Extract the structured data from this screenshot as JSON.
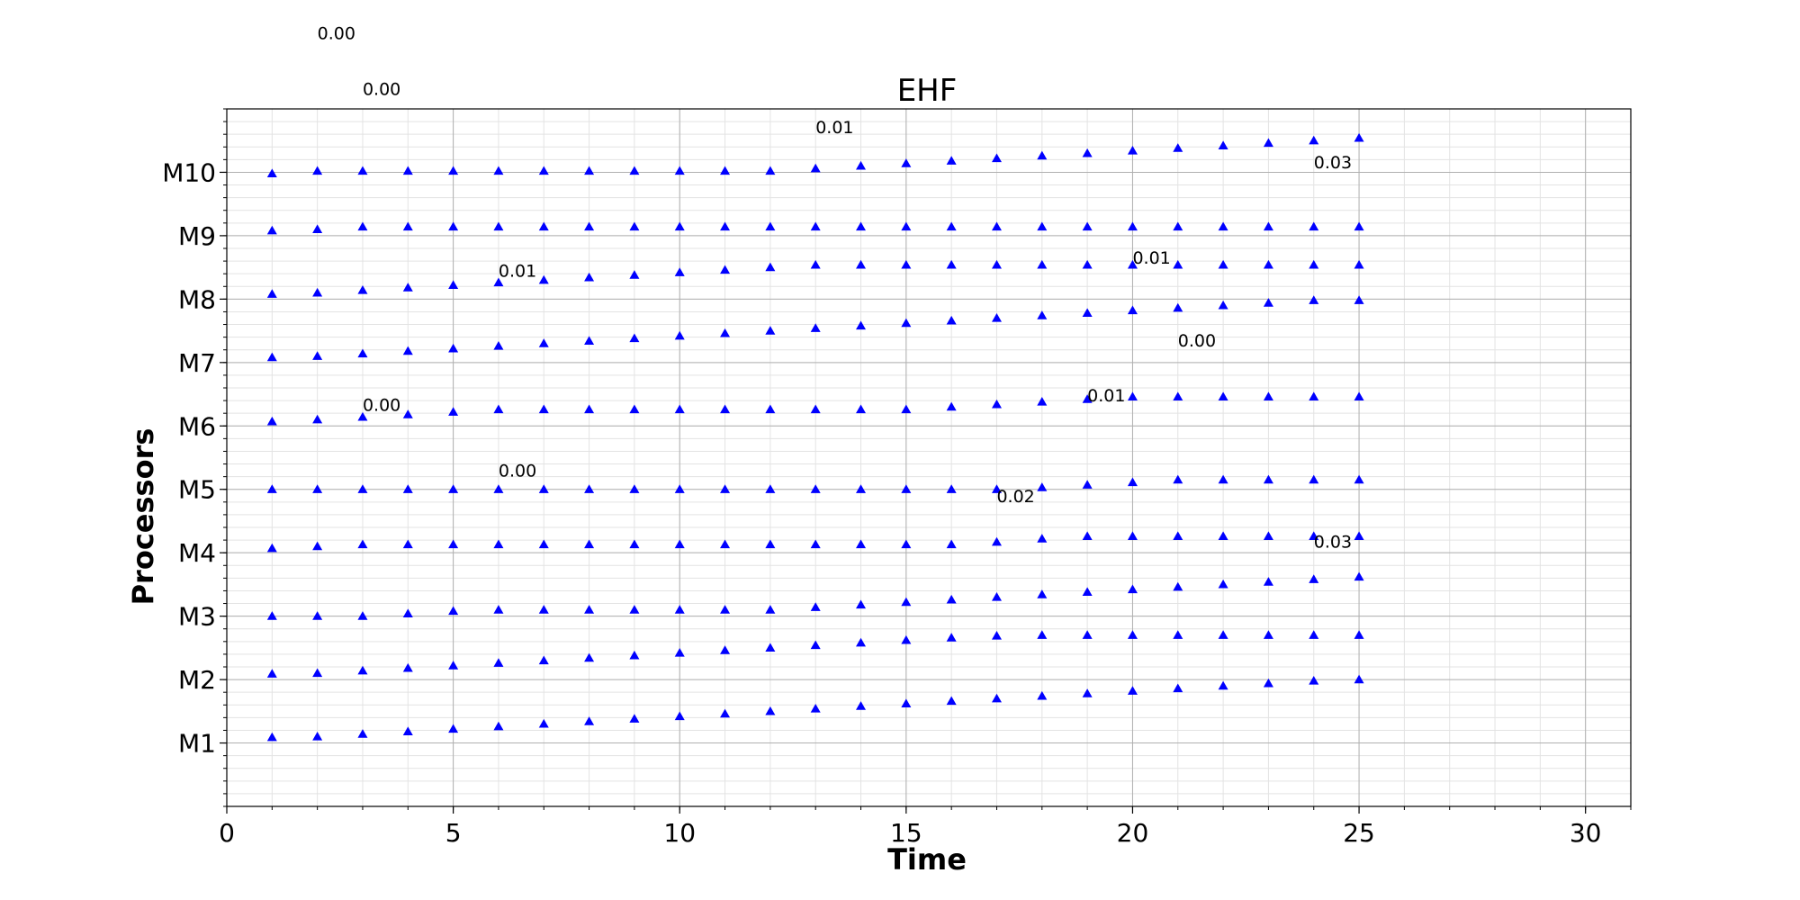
{
  "chart_data": {
    "type": "scatter",
    "title": "EHF",
    "xlabel": "Time",
    "ylabel": "Processors",
    "xlim": [
      0,
      31
    ],
    "ylim": [
      0,
      11
    ],
    "x_ticks": [
      0,
      5,
      10,
      15,
      20,
      25,
      30
    ],
    "y_ticks": [
      {
        "value": 1,
        "label": "M1"
      },
      {
        "value": 2,
        "label": "M2"
      },
      {
        "value": 3,
        "label": "M3"
      },
      {
        "value": 4,
        "label": "M4"
      },
      {
        "value": 5,
        "label": "M5"
      },
      {
        "value": 6,
        "label": "M6"
      },
      {
        "value": 7,
        "label": "M7"
      },
      {
        "value": 8,
        "label": "M8"
      },
      {
        "value": 9,
        "label": "M9"
      },
      {
        "value": 10,
        "label": "M10"
      }
    ],
    "grid": true,
    "minor_grid": true,
    "marker": "triangle",
    "marker_color": "#0000ff",
    "series": [
      {
        "x": [
          1,
          2,
          3,
          4,
          5,
          6,
          7,
          8,
          9,
          10,
          11,
          12,
          13,
          14,
          15,
          16,
          17,
          18,
          19,
          20,
          21,
          22,
          23,
          24,
          25
        ],
        "y": [
          1.09,
          1.1,
          1.14,
          1.18,
          1.22,
          1.26,
          1.3,
          1.34,
          1.38,
          1.42,
          1.46,
          1.5,
          1.54,
          1.58,
          1.62,
          1.66,
          1.7,
          1.74,
          1.78,
          1.82,
          1.86,
          1.9,
          1.94,
          1.98,
          2.0
        ]
      },
      {
        "x": [
          1,
          2,
          3,
          4,
          5,
          6,
          7,
          8,
          9,
          10,
          11,
          12,
          13,
          14,
          15,
          16,
          17,
          18,
          19,
          20,
          21,
          22,
          23,
          24,
          25
        ],
        "y": [
          2.09,
          2.1,
          2.14,
          2.18,
          2.22,
          2.26,
          2.3,
          2.34,
          2.38,
          2.42,
          2.46,
          2.5,
          2.54,
          2.58,
          2.62,
          2.66,
          2.69,
          2.7,
          2.7,
          2.7,
          2.7,
          2.7,
          2.7,
          2.7,
          2.7
        ]
      },
      {
        "x": [
          1,
          2,
          3,
          4,
          5,
          6,
          7,
          8,
          9,
          10,
          11,
          12,
          13,
          14,
          15,
          16,
          17,
          18,
          19,
          20,
          21,
          22,
          23,
          24,
          25
        ],
        "y": [
          3.0,
          3.0,
          3.0,
          3.04,
          3.08,
          3.1,
          3.1,
          3.1,
          3.1,
          3.1,
          3.1,
          3.1,
          3.14,
          3.18,
          3.22,
          3.26,
          3.3,
          3.34,
          3.38,
          3.42,
          3.46,
          3.5,
          3.54,
          3.58,
          3.62
        ]
      },
      {
        "x": [
          1,
          2,
          3,
          4,
          5,
          6,
          7,
          8,
          9,
          10,
          11,
          12,
          13,
          14,
          15,
          16,
          17,
          18,
          19,
          20,
          21,
          22,
          23,
          24,
          25
        ],
        "y": [
          4.07,
          4.1,
          4.13,
          4.13,
          4.13,
          4.13,
          4.13,
          4.13,
          4.13,
          4.13,
          4.13,
          4.13,
          4.13,
          4.13,
          4.13,
          4.13,
          4.17,
          4.22,
          4.26,
          4.26,
          4.26,
          4.26,
          4.26,
          4.26,
          4.26
        ]
      },
      {
        "x": [
          1,
          2,
          3,
          4,
          5,
          6,
          7,
          8,
          9,
          10,
          11,
          12,
          13,
          14,
          15,
          16,
          17,
          18,
          19,
          20,
          21,
          22,
          23,
          24,
          25
        ],
        "y": [
          5.0,
          5.0,
          5.0,
          5.0,
          5.0,
          5.0,
          5.0,
          5.0,
          5.0,
          5.0,
          5.0,
          5.0,
          5.0,
          5.0,
          5.0,
          5.0,
          5.0,
          5.03,
          5.07,
          5.11,
          5.15,
          5.15,
          5.15,
          5.15,
          5.15
        ]
      },
      {
        "x": [
          1,
          2,
          3,
          4,
          5,
          6,
          7,
          8,
          9,
          10,
          11,
          12,
          13,
          14,
          15,
          16,
          17,
          18,
          19,
          20,
          21,
          22,
          23,
          24,
          25
        ],
        "y": [
          6.07,
          6.1,
          6.14,
          6.18,
          6.22,
          6.26,
          6.26,
          6.26,
          6.26,
          6.26,
          6.26,
          6.26,
          6.26,
          6.26,
          6.26,
          6.3,
          6.34,
          6.38,
          6.42,
          6.46,
          6.46,
          6.46,
          6.46,
          6.46,
          6.46
        ]
      },
      {
        "x": [
          1,
          2,
          3,
          4,
          5,
          6,
          7,
          8,
          9,
          10,
          11,
          12,
          13,
          14,
          15,
          16,
          17,
          18,
          19,
          20,
          21,
          22,
          23,
          24,
          25
        ],
        "y": [
          7.08,
          7.1,
          7.14,
          7.18,
          7.22,
          7.26,
          7.3,
          7.34,
          7.38,
          7.42,
          7.46,
          7.5,
          7.54,
          7.58,
          7.62,
          7.66,
          7.7,
          7.74,
          7.78,
          7.82,
          7.86,
          7.9,
          7.94,
          7.98,
          7.98
        ]
      },
      {
        "x": [
          1,
          2,
          3,
          4,
          5,
          6,
          7,
          8,
          9,
          10,
          11,
          12,
          13,
          14,
          15,
          16,
          17,
          18,
          19,
          20,
          21,
          22,
          23,
          24,
          25
        ],
        "y": [
          8.08,
          8.1,
          8.14,
          8.18,
          8.22,
          8.26,
          8.3,
          8.34,
          8.38,
          8.42,
          8.46,
          8.5,
          8.54,
          8.54,
          8.54,
          8.54,
          8.54,
          8.54,
          8.54,
          8.54,
          8.54,
          8.54,
          8.54,
          8.54,
          8.54
        ]
      },
      {
        "x": [
          1,
          2,
          3,
          4,
          5,
          6,
          7,
          8,
          9,
          10,
          11,
          12,
          13,
          14,
          15,
          16,
          17,
          18,
          19,
          20,
          21,
          22,
          23,
          24,
          25
        ],
        "y": [
          9.08,
          9.1,
          9.14,
          9.14,
          9.14,
          9.14,
          9.14,
          9.14,
          9.14,
          9.14,
          9.14,
          9.14,
          9.14,
          9.14,
          9.14,
          9.14,
          9.14,
          9.14,
          9.14,
          9.14,
          9.14,
          9.14,
          9.14,
          9.14,
          9.14
        ]
      },
      {
        "x": [
          1,
          2,
          3,
          4,
          5,
          6,
          7,
          8,
          9,
          10,
          11,
          12,
          13,
          14,
          15,
          16,
          17,
          18,
          19,
          20,
          21,
          22,
          23,
          24,
          25
        ],
        "y": [
          9.98,
          10.02,
          10.02,
          10.02,
          10.02,
          10.02,
          10.02,
          10.02,
          10.02,
          10.02,
          10.02,
          10.02,
          10.06,
          10.1,
          10.14,
          10.18,
          10.22,
          10.26,
          10.3,
          10.34,
          10.38,
          10.42,
          10.46,
          10.5,
          10.54
        ]
      }
    ],
    "annotations": [
      {
        "text": "0.00",
        "x": 2.0,
        "y": 12.1
      },
      {
        "text": "0.00",
        "x": 3.0,
        "y": 11.22
      },
      {
        "text": "0.01",
        "x": 13.0,
        "y": 10.62
      },
      {
        "text": "0.03",
        "x": 24.0,
        "y": 10.06
      },
      {
        "text": "0.01",
        "x": 6.0,
        "y": 8.35
      },
      {
        "text": "0.01",
        "x": 20.0,
        "y": 8.56
      },
      {
        "text": "0.00",
        "x": 21.0,
        "y": 7.25
      },
      {
        "text": "0.00",
        "x": 3.0,
        "y": 6.24
      },
      {
        "text": "0.01",
        "x": 19.0,
        "y": 6.39
      },
      {
        "text": "0.00",
        "x": 6.0,
        "y": 5.2
      },
      {
        "text": "0.02",
        "x": 17.0,
        "y": 4.8
      },
      {
        "text": "0.03",
        "x": 24.0,
        "y": 4.08
      }
    ]
  }
}
